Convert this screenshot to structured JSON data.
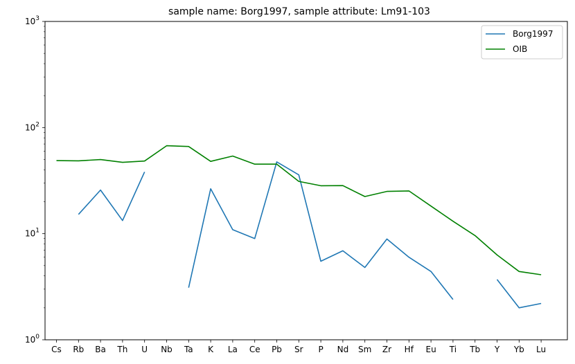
{
  "chart_data": {
    "type": "line",
    "title": "sample name: Borg1997, sample attribute: Lm91-103",
    "xlabel": "",
    "ylabel": "",
    "yscale": "log",
    "ylim": [
      1,
      1000
    ],
    "y_tick_labels": [
      {
        "value": 1,
        "base": "10",
        "exp": "0"
      },
      {
        "value": 10,
        "base": "10",
        "exp": "1"
      },
      {
        "value": 100,
        "base": "10",
        "exp": "2"
      },
      {
        "value": 1000,
        "base": "10",
        "exp": "3"
      }
    ],
    "categories": [
      "Cs",
      "Rb",
      "Ba",
      "Th",
      "U",
      "Nb",
      "Ta",
      "K",
      "La",
      "Ce",
      "Pb",
      "Sr",
      "P",
      "Nd",
      "Sm",
      "Zr",
      "Hf",
      "Eu",
      "Ti",
      "Tb",
      "Y",
      "Yb",
      "Lu"
    ],
    "series": [
      {
        "name": "Borg1997",
        "color": "#1f77b4",
        "values": [
          null,
          15.2,
          25.8,
          13.3,
          38.2,
          null,
          3.1,
          26.5,
          10.9,
          9.0,
          47.5,
          35.8,
          5.5,
          6.9,
          4.8,
          8.9,
          6.0,
          4.4,
          2.4,
          null,
          3.7,
          2.0,
          2.2
        ]
      },
      {
        "name": "OIB",
        "color": "#008000",
        "values": [
          48.8,
          48.6,
          49.9,
          47.0,
          48.4,
          67.4,
          66.3,
          48.0,
          53.9,
          45.2,
          45.2,
          31.1,
          28.3,
          28.4,
          22.4,
          25.0,
          25.3,
          18.2,
          13.1,
          9.6,
          6.3,
          4.4,
          4.1
        ]
      }
    ],
    "grid": false,
    "legend_position": "top-right"
  }
}
